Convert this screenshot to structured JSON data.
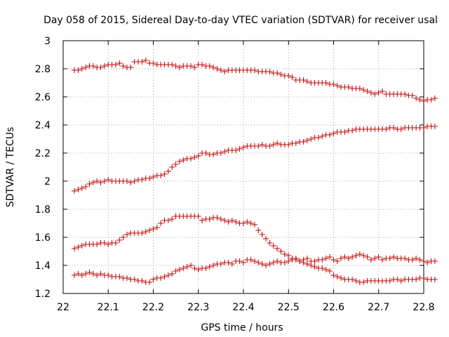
{
  "chart_data": {
    "type": "scatter",
    "title": "Day 058 of 2015, Sidereal Day-to-day VTEC variation (SDTVAR) for receiver usal",
    "xlabel": "GPS time / hours",
    "ylabel": "SDTVAR / TECUs",
    "xlim": [
      22,
      22.8
    ],
    "ylim": [
      1.2,
      3
    ],
    "xticks": [
      "22",
      "22.1",
      "22.2",
      "22.3",
      "22.4",
      "22.5",
      "22.6",
      "22.7",
      "22.8"
    ],
    "yticks": [
      "1.2",
      "1.4",
      "1.6",
      "1.8",
      "2",
      "2.2",
      "2.4",
      "2.6",
      "2.8",
      "3"
    ],
    "grid": true,
    "marker": "plus",
    "color": "#c00000",
    "x_start": 22.025,
    "x_step": 0.00833,
    "series": [
      {
        "name": "top",
        "values": [
          2.79,
          2.79,
          2.8,
          2.81,
          2.82,
          2.82,
          2.81,
          2.81,
          2.82,
          2.83,
          2.83,
          2.83,
          2.84,
          2.82,
          2.81,
          2.81,
          2.85,
          2.85,
          2.85,
          2.86,
          2.84,
          2.84,
          2.83,
          2.83,
          2.83,
          2.83,
          2.83,
          2.82,
          2.81,
          2.82,
          2.82,
          2.82,
          2.81,
          2.83,
          2.83,
          2.82,
          2.82,
          2.81,
          2.8,
          2.79,
          2.78,
          2.79,
          2.79,
          2.79,
          2.79,
          2.79,
          2.79,
          2.79,
          2.79,
          2.78,
          2.78,
          2.78,
          2.78,
          2.77,
          2.77,
          2.76,
          2.75,
          2.75,
          2.74,
          2.72,
          2.72,
          2.72,
          2.71,
          2.7,
          2.7,
          2.7,
          2.7,
          2.7,
          2.69,
          2.69,
          2.68,
          2.67,
          2.67,
          2.67,
          2.66,
          2.66,
          2.66,
          2.65,
          2.64,
          2.63,
          2.62,
          2.63,
          2.64,
          2.62,
          2.62,
          2.62,
          2.62,
          2.62,
          2.62,
          2.61,
          2.61,
          2.59,
          2.58,
          2.57,
          2.58,
          2.58,
          2.59
        ]
      },
      {
        "name": "second",
        "values": [
          1.93,
          1.94,
          1.95,
          1.96,
          1.98,
          1.99,
          2.0,
          1.99,
          2.0,
          2.01,
          2.0,
          2.0,
          2.0,
          2.0,
          2.0,
          1.99,
          2.0,
          2.01,
          2.01,
          2.02,
          2.02,
          2.03,
          2.04,
          2.04,
          2.05,
          2.07,
          2.1,
          2.12,
          2.14,
          2.15,
          2.16,
          2.16,
          2.17,
          2.18,
          2.2,
          2.2,
          2.19,
          2.19,
          2.2,
          2.2,
          2.21,
          2.22,
          2.22,
          2.22,
          2.23,
          2.24,
          2.25,
          2.25,
          2.25,
          2.25,
          2.26,
          2.25,
          2.25,
          2.26,
          2.27,
          2.26,
          2.26,
          2.26,
          2.27,
          2.27,
          2.28,
          2.28,
          2.29,
          2.3,
          2.31,
          2.31,
          2.32,
          2.33,
          2.33,
          2.34,
          2.35,
          2.35,
          2.35,
          2.36,
          2.36,
          2.37,
          2.37,
          2.37,
          2.37,
          2.37,
          2.37,
          2.37,
          2.37,
          2.37,
          2.38,
          2.38,
          2.37,
          2.37,
          2.38,
          2.38,
          2.38,
          2.38,
          2.38,
          2.38,
          2.39,
          2.39,
          2.39
        ]
      },
      {
        "name": "third",
        "values": [
          1.52,
          1.53,
          1.54,
          1.55,
          1.55,
          1.55,
          1.55,
          1.56,
          1.56,
          1.55,
          1.56,
          1.56,
          1.58,
          1.6,
          1.62,
          1.63,
          1.63,
          1.63,
          1.63,
          1.64,
          1.65,
          1.66,
          1.67,
          1.7,
          1.72,
          1.72,
          1.73,
          1.75,
          1.75,
          1.75,
          1.75,
          1.75,
          1.75,
          1.75,
          1.72,
          1.73,
          1.73,
          1.74,
          1.74,
          1.73,
          1.72,
          1.71,
          1.72,
          1.71,
          1.7,
          1.7,
          1.71,
          1.7,
          1.69,
          1.65,
          1.62,
          1.59,
          1.56,
          1.54,
          1.52,
          1.5,
          1.48,
          1.47,
          1.45,
          1.44,
          1.43,
          1.42,
          1.41,
          1.4,
          1.39,
          1.38,
          1.38,
          1.37,
          1.36,
          1.33,
          1.32,
          1.31,
          1.3,
          1.3,
          1.3,
          1.29,
          1.28,
          1.28,
          1.29,
          1.29,
          1.29,
          1.29,
          1.29,
          1.29,
          1.29,
          1.3,
          1.3,
          1.29,
          1.3,
          1.3,
          1.3,
          1.3,
          1.31,
          1.31,
          1.3,
          1.3,
          1.3
        ]
      },
      {
        "name": "bottom",
        "values": [
          1.33,
          1.34,
          1.33,
          1.34,
          1.35,
          1.34,
          1.33,
          1.34,
          1.33,
          1.33,
          1.32,
          1.32,
          1.32,
          1.31,
          1.31,
          1.3,
          1.3,
          1.29,
          1.29,
          1.28,
          1.28,
          1.3,
          1.31,
          1.31,
          1.32,
          1.33,
          1.34,
          1.36,
          1.37,
          1.38,
          1.39,
          1.4,
          1.38,
          1.37,
          1.38,
          1.38,
          1.39,
          1.4,
          1.41,
          1.41,
          1.42,
          1.42,
          1.41,
          1.43,
          1.43,
          1.42,
          1.44,
          1.44,
          1.43,
          1.42,
          1.41,
          1.4,
          1.41,
          1.42,
          1.43,
          1.42,
          1.42,
          1.43,
          1.44,
          1.45,
          1.43,
          1.44,
          1.45,
          1.43,
          1.43,
          1.44,
          1.44,
          1.45,
          1.46,
          1.44,
          1.43,
          1.45,
          1.46,
          1.45,
          1.46,
          1.47,
          1.48,
          1.47,
          1.46,
          1.44,
          1.45,
          1.46,
          1.44,
          1.45,
          1.45,
          1.46,
          1.45,
          1.45,
          1.45,
          1.44,
          1.44,
          1.45,
          1.44,
          1.43,
          1.42,
          1.43,
          1.43
        ]
      }
    ]
  }
}
